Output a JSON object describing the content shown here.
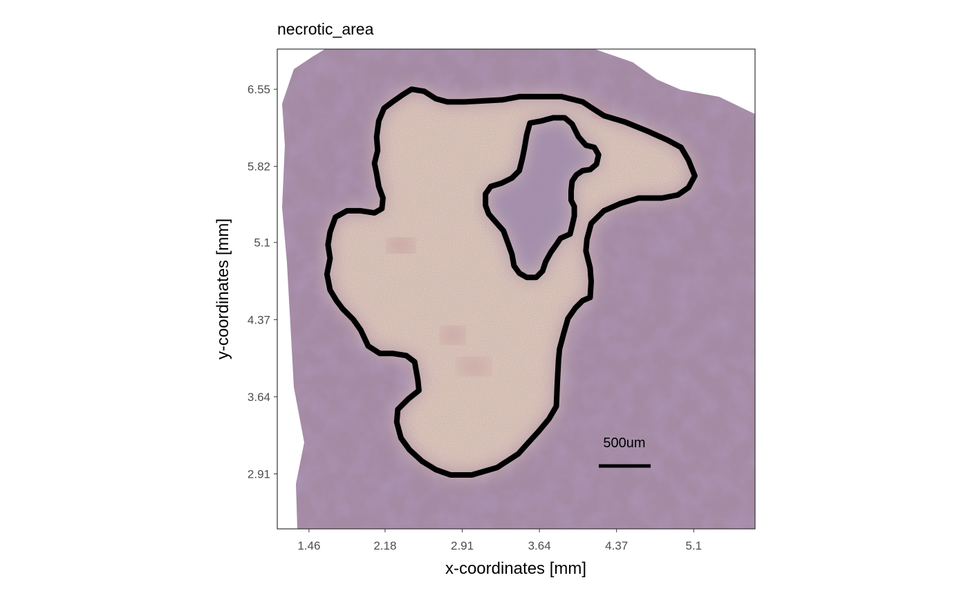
{
  "chart_data": {
    "type": "spatial-image-annotation",
    "title": "necrotic_area",
    "xlabel": "x-coordinates [mm]",
    "ylabel": "y-coordinates [mm]",
    "x_ticks": [
      "1.46",
      "2.18",
      "2.91",
      "3.64",
      "4.37",
      "5.1"
    ],
    "y_ticks": [
      "6.55",
      "5.82",
      "5.1",
      "4.37",
      "3.64",
      "2.91"
    ],
    "xlim": [
      1.16,
      5.68
    ],
    "ylim": [
      2.39,
      6.93
    ],
    "grid": false,
    "background": "H&E tissue section image",
    "annotation": {
      "name": "necrotic_area",
      "color": "#000000",
      "outer_boundary": [
        [
          2.43,
          6.55
        ],
        [
          2.55,
          6.53
        ],
        [
          2.66,
          6.46
        ],
        [
          2.77,
          6.43
        ],
        [
          2.93,
          6.43
        ],
        [
          3.29,
          6.45
        ],
        [
          3.45,
          6.48
        ],
        [
          3.6,
          6.48
        ],
        [
          3.85,
          6.48
        ],
        [
          4.05,
          6.43
        ],
        [
          4.14,
          6.37
        ],
        [
          4.25,
          6.3
        ],
        [
          4.45,
          6.24
        ],
        [
          4.67,
          6.15
        ],
        [
          4.85,
          6.07
        ],
        [
          4.98,
          6.0
        ],
        [
          5.05,
          5.88
        ],
        [
          5.11,
          5.73
        ],
        [
          5.05,
          5.62
        ],
        [
          4.95,
          5.55
        ],
        [
          4.8,
          5.52
        ],
        [
          4.58,
          5.52
        ],
        [
          4.41,
          5.47
        ],
        [
          4.25,
          5.4
        ],
        [
          4.13,
          5.28
        ],
        [
          4.09,
          5.13
        ],
        [
          4.08,
          5.02
        ],
        [
          4.12,
          4.86
        ],
        [
          4.13,
          4.73
        ],
        [
          4.12,
          4.58
        ],
        [
          4.05,
          4.55
        ],
        [
          3.98,
          4.48
        ],
        [
          3.91,
          4.38
        ],
        [
          3.87,
          4.24
        ],
        [
          3.83,
          4.09
        ],
        [
          3.82,
          3.98
        ],
        [
          3.81,
          3.78
        ],
        [
          3.8,
          3.55
        ],
        [
          3.73,
          3.43
        ],
        [
          3.63,
          3.31
        ],
        [
          3.53,
          3.2
        ],
        [
          3.44,
          3.1
        ],
        [
          3.24,
          2.97
        ],
        [
          3.0,
          2.9
        ],
        [
          2.8,
          2.9
        ],
        [
          2.66,
          2.95
        ],
        [
          2.53,
          3.03
        ],
        [
          2.41,
          3.14
        ],
        [
          2.33,
          3.25
        ],
        [
          2.29,
          3.4
        ],
        [
          2.3,
          3.52
        ],
        [
          2.4,
          3.62
        ],
        [
          2.5,
          3.7
        ],
        [
          2.49,
          3.8
        ],
        [
          2.46,
          3.97
        ],
        [
          2.38,
          4.03
        ],
        [
          2.25,
          4.05
        ],
        [
          2.13,
          4.05
        ],
        [
          2.02,
          4.12
        ],
        [
          1.95,
          4.27
        ],
        [
          1.88,
          4.37
        ],
        [
          1.78,
          4.47
        ],
        [
          1.72,
          4.55
        ],
        [
          1.66,
          4.65
        ],
        [
          1.63,
          4.8
        ],
        [
          1.66,
          4.95
        ],
        [
          1.64,
          5.08
        ],
        [
          1.66,
          5.2
        ],
        [
          1.71,
          5.34
        ],
        [
          1.82,
          5.4
        ],
        [
          1.95,
          5.4
        ],
        [
          2.08,
          5.38
        ],
        [
          2.15,
          5.42
        ],
        [
          2.16,
          5.52
        ],
        [
          2.12,
          5.63
        ],
        [
          2.1,
          5.75
        ],
        [
          2.08,
          5.85
        ],
        [
          2.11,
          5.97
        ],
        [
          2.1,
          6.1
        ],
        [
          2.12,
          6.25
        ],
        [
          2.17,
          6.37
        ],
        [
          2.25,
          6.43
        ],
        [
          2.35,
          6.5
        ],
        [
          2.43,
          6.55
        ]
      ],
      "inner_boundary": [
        [
          3.55,
          6.23
        ],
        [
          3.66,
          6.25
        ],
        [
          3.77,
          6.28
        ],
        [
          3.88,
          6.28
        ],
        [
          3.95,
          6.22
        ],
        [
          4.01,
          6.1
        ],
        [
          4.08,
          6.02
        ],
        [
          4.16,
          6.0
        ],
        [
          4.2,
          5.93
        ],
        [
          4.18,
          5.84
        ],
        [
          4.12,
          5.79
        ],
        [
          4.05,
          5.78
        ],
        [
          3.99,
          5.74
        ],
        [
          3.95,
          5.68
        ],
        [
          3.94,
          5.59
        ],
        [
          3.94,
          5.5
        ],
        [
          3.97,
          5.44
        ],
        [
          3.97,
          5.35
        ],
        [
          3.95,
          5.26
        ],
        [
          3.93,
          5.18
        ],
        [
          3.84,
          5.14
        ],
        [
          3.8,
          5.08
        ],
        [
          3.75,
          5.01
        ],
        [
          3.7,
          4.92
        ],
        [
          3.67,
          4.83
        ],
        [
          3.61,
          4.77
        ],
        [
          3.52,
          4.77
        ],
        [
          3.45,
          4.81
        ],
        [
          3.4,
          4.88
        ],
        [
          3.38,
          4.99
        ],
        [
          3.34,
          5.1
        ],
        [
          3.3,
          5.21
        ],
        [
          3.23,
          5.29
        ],
        [
          3.16,
          5.37
        ],
        [
          3.13,
          5.45
        ],
        [
          3.13,
          5.56
        ],
        [
          3.18,
          5.63
        ],
        [
          3.28,
          5.66
        ],
        [
          3.38,
          5.71
        ],
        [
          3.45,
          5.78
        ],
        [
          3.48,
          5.9
        ],
        [
          3.5,
          6.0
        ],
        [
          3.52,
          6.12
        ],
        [
          3.55,
          6.23
        ]
      ]
    },
    "scale_bar": {
      "label": "500um",
      "length_um": 500
    }
  }
}
